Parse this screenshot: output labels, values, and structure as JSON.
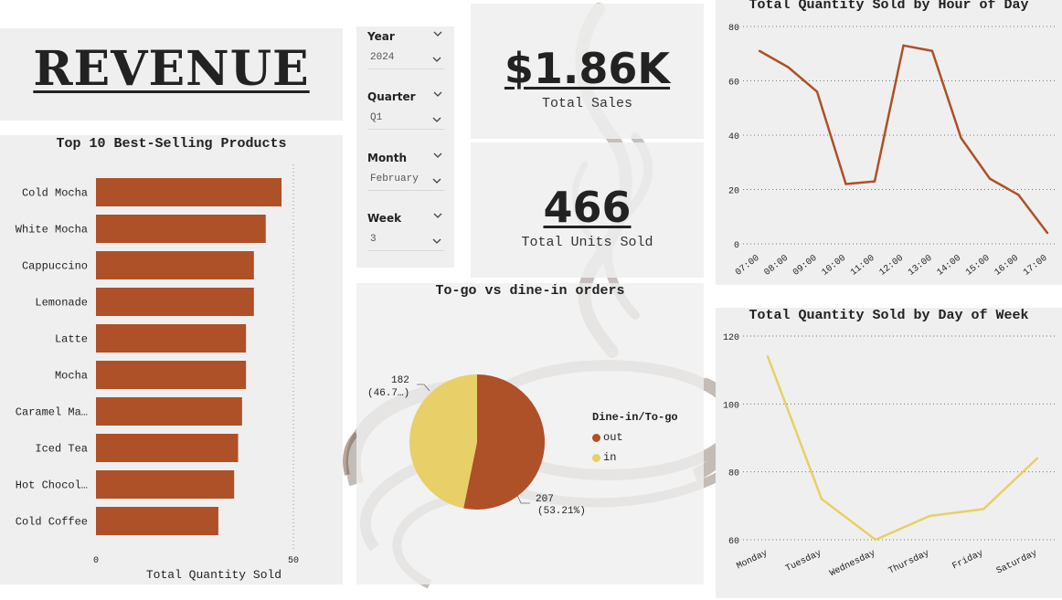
{
  "title": "REVENUE",
  "colors": {
    "bar": "#ae5028",
    "out": "#ae5028",
    "in": "#e8cf68",
    "line1": "#ae5028",
    "line2": "#e8cf68",
    "panel": "#efefef",
    "decoration": "#bdb5b0"
  },
  "slicers": [
    {
      "label": "Year",
      "value": "2024"
    },
    {
      "label": "Quarter",
      "value": "Q1"
    },
    {
      "label": "Month",
      "value": "February"
    },
    {
      "label": "Week",
      "value": "3"
    }
  ],
  "kpis": [
    {
      "value": "$1.86K",
      "label": "Total Sales"
    },
    {
      "value": "466",
      "label": "Total Units Sold"
    }
  ],
  "chart_data": [
    {
      "type": "bar",
      "orientation": "horizontal",
      "title": "Top 10 Best-Selling Products",
      "xlabel": "Total Quantity Sold",
      "categories": [
        "Cold Mocha",
        "White Mocha",
        "Cappuccino",
        "Lemonade",
        "Latte",
        "Mocha",
        "Caramel Ma…",
        "Iced Tea",
        "Hot Chocol…",
        "Cold Coffee"
      ],
      "values": [
        47,
        43,
        40,
        40,
        38,
        38,
        37,
        36,
        35,
        31
      ],
      "xlim": [
        0,
        50
      ],
      "xticks": [
        "0",
        "50"
      ]
    },
    {
      "type": "pie",
      "title": "To-go vs dine-in orders",
      "legend_title": "Dine-in/To-go",
      "slices": [
        {
          "name": "out",
          "value": 207,
          "label_value": "207",
          "label_pct": "(53.21%)"
        },
        {
          "name": "in",
          "value": 182,
          "label_value": "182",
          "label_pct": "(46.7…)"
        }
      ]
    },
    {
      "type": "line",
      "title": "Total Quantity Sold by Hour of Day",
      "x": [
        "07:00",
        "08:00",
        "09:00",
        "10:00",
        "11:00",
        "12:00",
        "13:00",
        "14:00",
        "15:00",
        "16:00",
        "17:00"
      ],
      "values": [
        71,
        65,
        56,
        22,
        23,
        73,
        71,
        39,
        24,
        18,
        4
      ],
      "ylim": [
        0,
        80
      ],
      "yticks": [
        "0",
        "20",
        "40",
        "60",
        "80"
      ]
    },
    {
      "type": "line",
      "title": "Total Quantity Sold by Day of Week",
      "x": [
        "Monday",
        "Tuesday",
        "Wednesday",
        "Thursday",
        "Friday",
        "Saturday"
      ],
      "values": [
        114,
        72,
        60,
        67,
        69,
        84
      ],
      "ylim": [
        60,
        120
      ],
      "yticks": [
        "60",
        "80",
        "100",
        "120"
      ]
    }
  ]
}
